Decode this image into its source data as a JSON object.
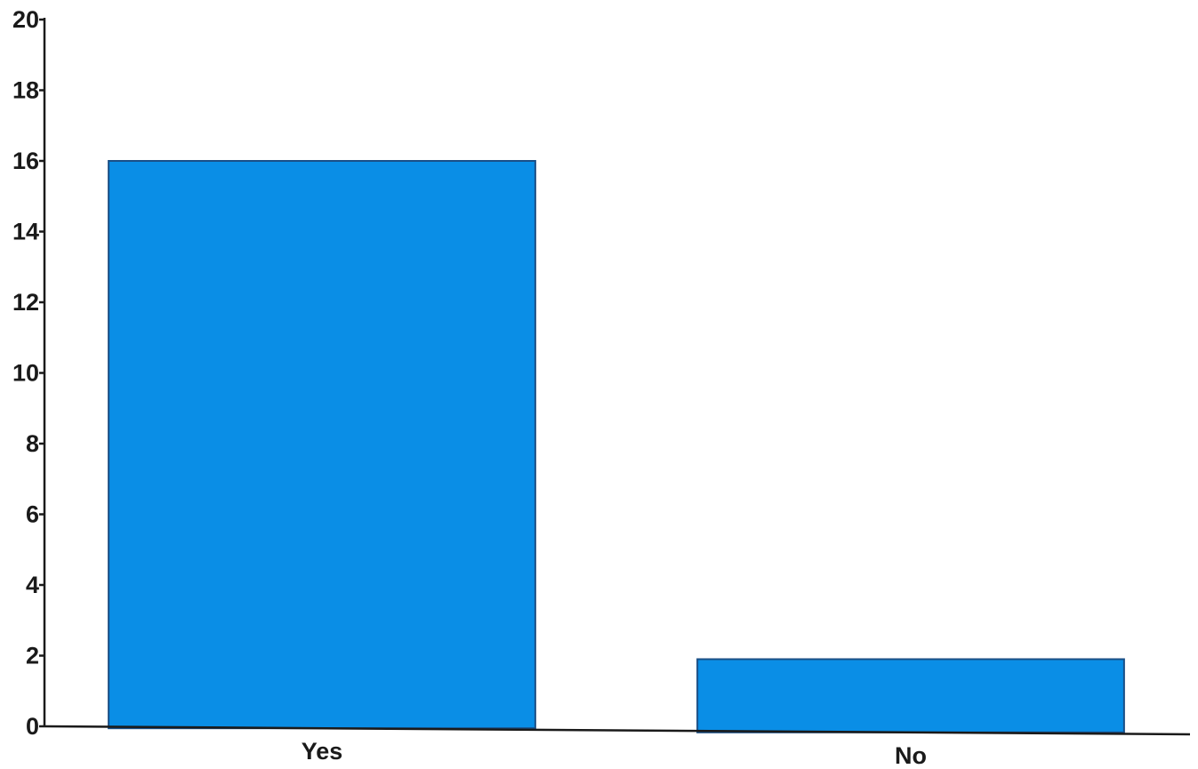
{
  "chart_data": {
    "type": "bar",
    "title": "",
    "xlabel": "",
    "ylabel": "",
    "categories": [
      "Yes",
      "No"
    ],
    "values": [
      16,
      1.9
    ],
    "ylim": [
      0,
      20
    ],
    "yticks": [
      0,
      2,
      4,
      6,
      8,
      10,
      12,
      14,
      16,
      18,
      20
    ],
    "grid": false,
    "legend": "none",
    "colors": {
      "bar": "#0a8ee6",
      "bar_edge": "#1a4f86",
      "axis": "#1a1a1a"
    }
  }
}
